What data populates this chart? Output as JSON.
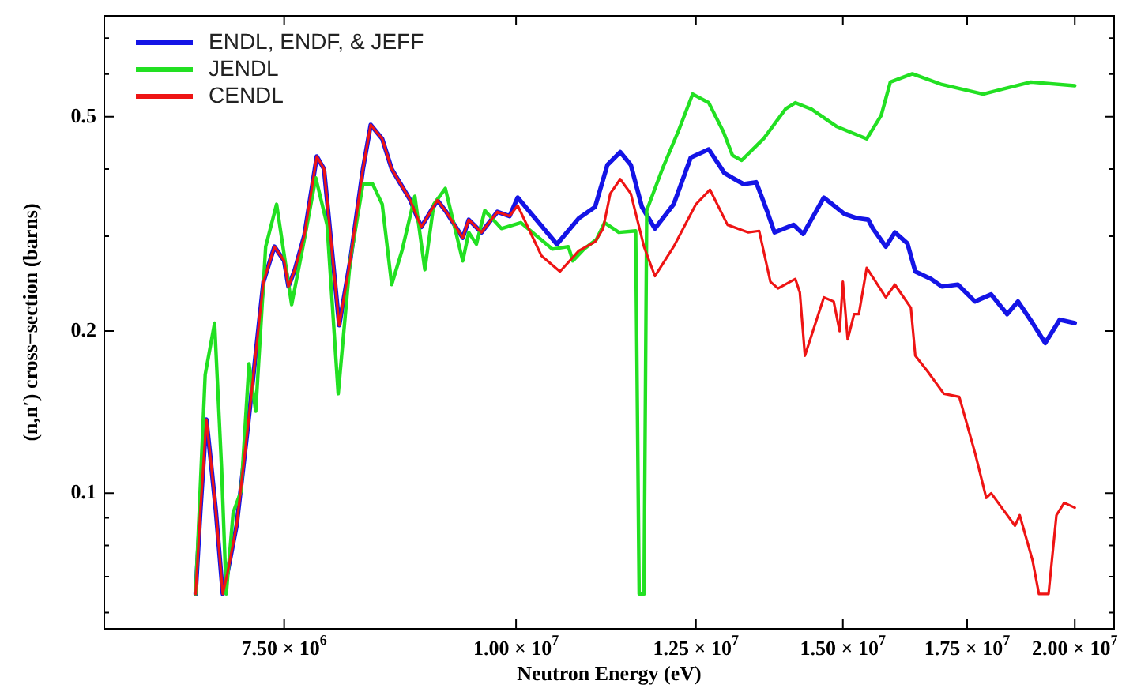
{
  "chart_data": {
    "type": "line",
    "xlabel": "Neutron Energy (eV)",
    "ylabel": "(n,n′) cross−section (barns)",
    "log": "xy",
    "grid": false,
    "legend": "top left",
    "xlim": [
      6000000.0,
      21000000.0
    ],
    "ylim": [
      0.056,
      0.77
    ],
    "xticks": [
      {
        "value": 7500000.0,
        "label": "7.50 × 10$^{6}$"
      },
      {
        "value": 10000000.0,
        "label": "1.00 × 10$^{7}$"
      },
      {
        "value": 12500000.0,
        "label": "1.25 × 10$^{7}$"
      },
      {
        "value": 15000000.0,
        "label": "1.50 × 10$^{7}$"
      },
      {
        "value": 17500000.0,
        "label": "1.75 × 10$^{7}$"
      },
      {
        "value": 20000000.0,
        "label": "2.00 × 10$^{7}$"
      }
    ],
    "yticks": [
      {
        "value": 0.06,
        "label": null
      },
      {
        "value": 0.07,
        "label": null
      },
      {
        "value": 0.08,
        "label": null
      },
      {
        "value": 0.09,
        "label": null
      },
      {
        "value": 0.1,
        "label": "0.1"
      },
      {
        "value": 0.2,
        "label": "0.2"
      },
      {
        "value": 0.3,
        "label": null
      },
      {
        "value": 0.4,
        "label": null
      },
      {
        "value": 0.5,
        "label": "0.5"
      },
      {
        "value": 0.6,
        "label": null
      },
      {
        "value": 0.7,
        "label": null
      }
    ],
    "series": [
      {
        "name": "ENDL, ENDF, & JEFF",
        "color": "#1414e6",
        "x": [
          6720000.0,
          6760000.0,
          6810000.0,
          6840000.0,
          6890000.0,
          6950000.0,
          6990000.0,
          7070000.0,
          7170000.0,
          7310000.0,
          7410000.0,
          7500000.0,
          7540000.0,
          7600000.0,
          7690000.0,
          7810000.0,
          7880000.0,
          8030000.0,
          8140000.0,
          8270000.0,
          8350000.0,
          8470000.0,
          8570000.0,
          8770000.0,
          8890000.0,
          9070000.0,
          9170000.0,
          9360000.0,
          9430000.0,
          9580000.0,
          9770000.0,
          9920000.0,
          10020000.0,
          10520000.0,
          10810000.0,
          11030000.0,
          11200000.0,
          11380000.0,
          11530000.0,
          11690000.0,
          11880000.0,
          12160000.0,
          12420000.0,
          12700000.0,
          12950000.0,
          13080000.0,
          13260000.0,
          13470000.0,
          13650000.0,
          13780000.0,
          14110000.0,
          14280000.0,
          14650000.0,
          15030000.0,
          15270000.0,
          15480000.0,
          15570000.0,
          15820000.0,
          16000000.0,
          16250000.0,
          16410000.0,
          16730000.0,
          16960000.0,
          17300000.0,
          17670000.0,
          18030000.0,
          18390000.0,
          18640000.0,
          18980000.0,
          19280000.0,
          19630000.0,
          20000000.0
        ],
        "values": [
          0.065,
          0.093,
          0.137,
          0.119,
          0.093,
          0.065,
          0.071,
          0.087,
          0.133,
          0.247,
          0.287,
          0.27,
          0.242,
          0.26,
          0.301,
          0.422,
          0.4,
          0.205,
          0.27,
          0.4,
          0.483,
          0.455,
          0.4,
          0.35,
          0.312,
          0.35,
          0.333,
          0.298,
          0.322,
          0.305,
          0.333,
          0.327,
          0.354,
          0.29,
          0.324,
          0.34,
          0.407,
          0.43,
          0.407,
          0.34,
          0.31,
          0.344,
          0.42,
          0.435,
          0.393,
          0.385,
          0.375,
          0.378,
          0.335,
          0.305,
          0.315,
          0.303,
          0.354,
          0.33,
          0.324,
          0.322,
          0.31,
          0.287,
          0.305,
          0.291,
          0.258,
          0.25,
          0.242,
          0.244,
          0.227,
          0.234,
          0.215,
          0.227,
          0.207,
          0.19,
          0.21,
          0.207
        ]
      },
      {
        "name": "JENDL",
        "color": "#22e022",
        "x": [
          6720000.0,
          6800000.0,
          6880000.0,
          6940000.0,
          6980000.0,
          7040000.0,
          7110000.0,
          7180000.0,
          7240000.0,
          7330000.0,
          7430000.0,
          7570000.0,
          7690000.0,
          7800000.0,
          7910000.0,
          8020000.0,
          8140000.0,
          8270000.0,
          8370000.0,
          8470000.0,
          8570000.0,
          8680000.0,
          8820000.0,
          8930000.0,
          9030000.0,
          9160000.0,
          9360000.0,
          9430000.0,
          9520000.0,
          9620000.0,
          9820000.0,
          10060000.0,
          10460000.0,
          10670000.0,
          10730000.0,
          10880000.0,
          11050000.0,
          11160000.0,
          11360000.0,
          11600000.0,
          11650000.0,
          11720000.0,
          11760000.0,
          11990000.0,
          12230000.0,
          12450000.0,
          12700000.0,
          12930000.0,
          13080000.0,
          13230000.0,
          13600000.0,
          13970000.0,
          14140000.0,
          14420000.0,
          14880000.0,
          15450000.0,
          15730000.0,
          15910000.0,
          16350000.0,
          16960000.0,
          17850000.0,
          18940000.0,
          20000000.0
        ],
        "values": [
          0.065,
          0.166,
          0.207,
          0.111,
          0.065,
          0.092,
          0.101,
          0.174,
          0.142,
          0.287,
          0.344,
          0.224,
          0.296,
          0.385,
          0.315,
          0.153,
          0.27,
          0.375,
          0.375,
          0.344,
          0.244,
          0.282,
          0.356,
          0.26,
          0.344,
          0.368,
          0.27,
          0.305,
          0.29,
          0.335,
          0.31,
          0.318,
          0.284,
          0.287,
          0.27,
          0.284,
          0.296,
          0.318,
          0.305,
          0.307,
          0.065,
          0.065,
          0.335,
          0.4,
          0.47,
          0.551,
          0.531,
          0.47,
          0.424,
          0.415,
          0.456,
          0.517,
          0.531,
          0.517,
          0.48,
          0.455,
          0.503,
          0.58,
          0.601,
          0.574,
          0.551,
          0.58,
          0.571
        ]
      },
      {
        "name": "CENDL",
        "color": "#ee1414",
        "x": [
          6720000.0,
          6760000.0,
          6810000.0,
          6840000.0,
          6890000.0,
          6950000.0,
          6990000.0,
          7070000.0,
          7170000.0,
          7310000.0,
          7410000.0,
          7500000.0,
          7540000.0,
          7600000.0,
          7690000.0,
          7810000.0,
          7880000.0,
          8030000.0,
          8140000.0,
          8270000.0,
          8350000.0,
          8470000.0,
          8570000.0,
          8770000.0,
          8890000.0,
          9070000.0,
          9170000.0,
          9360000.0,
          9430000.0,
          9580000.0,
          9770000.0,
          9920000.0,
          10020000.0,
          10320000.0,
          10560000.0,
          10810000.0,
          11030000.0,
          11140000.0,
          11240000.0,
          11380000.0,
          11530000.0,
          11720000.0,
          11880000.0,
          12160000.0,
          12500000.0,
          12720000.0,
          13000000.0,
          13340000.0,
          13520000.0,
          13710000.0,
          13840000.0,
          14140000.0,
          14220000.0,
          14310000.0,
          14650000.0,
          14830000.0,
          14940000.0,
          15000000.0,
          15090000.0,
          15210000.0,
          15300000.0,
          15450000.0,
          15820000.0,
          16000000.0,
          16320000.0,
          16410000.0,
          16670000.0,
          17000000.0,
          17330000.0,
          17670000.0,
          17920000.0,
          18030000.0,
          18570000.0,
          18680000.0,
          18980000.0,
          19130000.0,
          19360000.0,
          19550000.0,
          19740000.0,
          20000000.0
        ],
        "values": [
          0.065,
          0.093,
          0.137,
          0.119,
          0.093,
          0.065,
          0.071,
          0.087,
          0.133,
          0.247,
          0.287,
          0.27,
          0.242,
          0.26,
          0.301,
          0.422,
          0.4,
          0.205,
          0.27,
          0.4,
          0.483,
          0.455,
          0.4,
          0.35,
          0.312,
          0.35,
          0.333,
          0.298,
          0.322,
          0.305,
          0.333,
          0.327,
          0.342,
          0.276,
          0.258,
          0.282,
          0.293,
          0.31,
          0.36,
          0.383,
          0.36,
          0.287,
          0.253,
          0.287,
          0.344,
          0.366,
          0.315,
          0.305,
          0.307,
          0.247,
          0.24,
          0.25,
          0.236,
          0.18,
          0.231,
          0.227,
          0.2,
          0.247,
          0.193,
          0.215,
          0.215,
          0.262,
          0.231,
          0.244,
          0.221,
          0.18,
          0.168,
          0.153,
          0.151,
          0.119,
          0.098,
          0.1,
          0.087,
          0.091,
          0.075,
          0.065,
          0.065,
          0.091,
          0.096,
          0.094
        ]
      }
    ]
  }
}
